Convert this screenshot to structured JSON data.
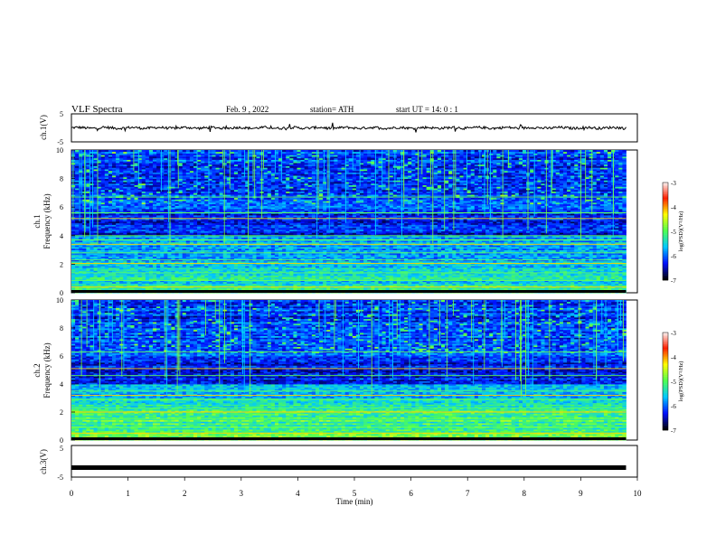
{
  "header": {
    "title": "VLF  Spectra",
    "date": "Feb. 9  , 2022",
    "station": "station= ATH",
    "start": "start  UT  =   14: 0   : 1"
  },
  "chart_data": [
    {
      "type": "line",
      "ylabel": "ch.1(V)",
      "ylim": [
        -5,
        5
      ],
      "y_ticks": [
        "5",
        "-5"
      ],
      "baseline": 0,
      "series": [
        {
          "values_description_none": true,
          "x_range_min": [
            0,
            9.8
          ],
          "mean_v": 0
        }
      ]
    },
    {
      "type": "heatmap",
      "ylabel": "ch.1\nFrequency  (kHz)",
      "ylabel_lines": [
        "ch.1",
        "Frequency  (kHz)"
      ],
      "ylim": [
        0,
        10
      ],
      "y_ticks": [
        "0",
        "2",
        "4",
        "6",
        "8",
        "10"
      ],
      "x_range_min": [
        0,
        9.8
      ],
      "colorbar": {
        "label": "log(PSD)(V²/Hz)",
        "range": [
          -7,
          -3
        ],
        "ticks": [
          "-3",
          "-4",
          "-5",
          "-6",
          "-7"
        ]
      },
      "colormap": [
        "#000000",
        "#0010ff",
        "#00c8ff",
        "#50ff50",
        "#ffff00",
        "#ff2000",
        "#ffffff"
      ]
    },
    {
      "type": "heatmap",
      "ylabel": "ch.2\nFrequency  (kHz)",
      "ylabel_lines": [
        "ch.2",
        "Frequency  (kHz)"
      ],
      "ylim": [
        0,
        10
      ],
      "y_ticks": [
        "0",
        "2",
        "4",
        "6",
        "8",
        "10"
      ],
      "x_range_min": [
        0,
        9.8
      ],
      "colorbar": {
        "label": "log(PSD)(V²/Hz)",
        "range": [
          -7,
          -3
        ],
        "ticks": [
          "-3",
          "-4",
          "-5",
          "-6",
          "-7"
        ]
      },
      "colormap": [
        "#000000",
        "#0010ff",
        "#00c8ff",
        "#50ff50",
        "#ffff00",
        "#ff2000",
        "#ffffff"
      ]
    },
    {
      "type": "line",
      "ylabel": "ch.3(V)",
      "ylim": [
        -5,
        5
      ],
      "y_ticks": [
        "5",
        "-5"
      ],
      "series": [
        {
          "constant_v": -2,
          "x_range_min": [
            0,
            9.8
          ]
        }
      ]
    }
  ],
  "xaxis": {
    "label": "Time  (min)",
    "ticks": [
      "0",
      "1",
      "2",
      "3",
      "4",
      "5",
      "6",
      "7",
      "8",
      "9",
      "10"
    ],
    "xlim": [
      0,
      10
    ]
  }
}
